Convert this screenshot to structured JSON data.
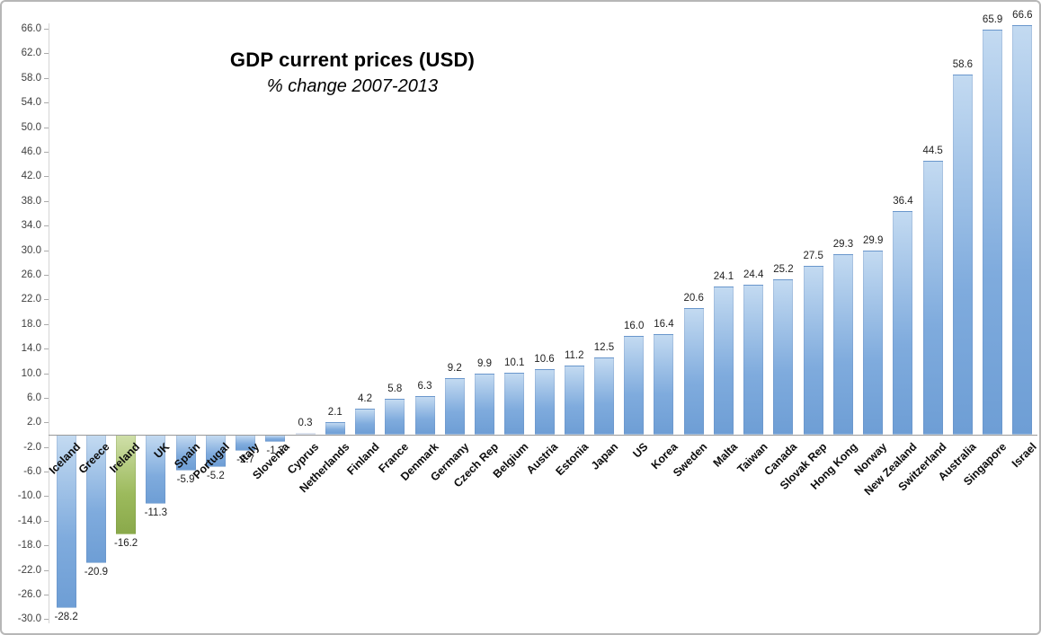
{
  "chart_data": {
    "type": "bar",
    "title": "GDP current prices (USD)",
    "subtitle": "% change 2007-2013",
    "xlabel": "",
    "ylabel": "",
    "grid": false,
    "legend": false,
    "yaxis": {
      "min": -30,
      "max": 66,
      "step": 4,
      "tick_format_decimals": 1
    },
    "categories": [
      "Iceland",
      "Greece",
      "Ireland",
      "UK",
      "Spain",
      "Portugal",
      "Italy",
      "Slovenia",
      "Cyprus",
      "Netherlands",
      "Finland",
      "France",
      "Denmark",
      "Germany",
      "Czech Rep",
      "Belgium",
      "Austria",
      "Estonia",
      "Japan",
      "US",
      "Korea",
      "Sweden",
      "Malta",
      "Taiwan",
      "Canada",
      "Slovak Rep",
      "Hong Kong",
      "Norway",
      "New Zealand",
      "Switzerland",
      "Australia",
      "Singapore",
      "Israel"
    ],
    "values": [
      -28.2,
      -20.9,
      -16.2,
      -11.3,
      -5.9,
      -5.2,
      -2.7,
      -1.2,
      0.3,
      2.1,
      4.2,
      5.8,
      6.3,
      9.2,
      9.9,
      10.1,
      10.6,
      11.2,
      12.5,
      16.0,
      16.4,
      20.6,
      24.1,
      24.4,
      25.2,
      27.5,
      29.3,
      29.9,
      36.4,
      44.5,
      58.6,
      65.9,
      66.6
    ],
    "highlight_index": 2,
    "highlight_category": "Ireland",
    "colors": {
      "bar_gradient": [
        "#c3daf1",
        "#7fabdd",
        "#6e9ed5"
      ],
      "highlight_gradient": [
        "#cfdfa8",
        "#9cba5c",
        "#8aa94b"
      ],
      "axis_line": "#9a9a9a",
      "tick_label": "#3f3f3f",
      "value_label": "#1f1f1f",
      "category_label": "#0d0d0d"
    }
  }
}
